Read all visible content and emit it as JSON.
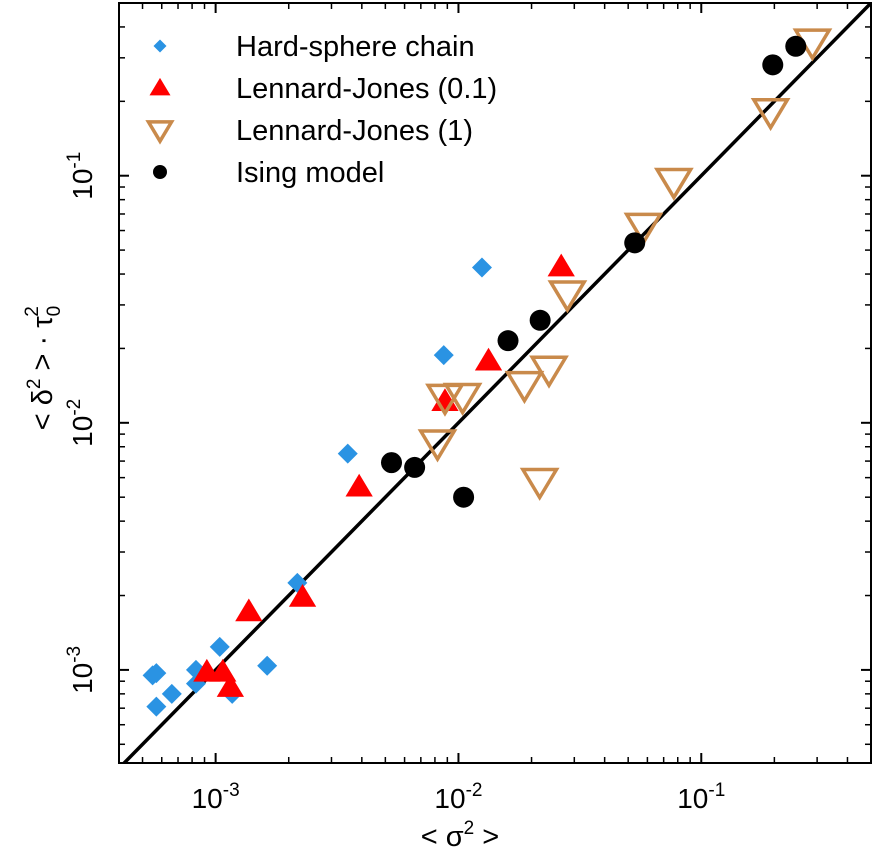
{
  "chart_data": {
    "type": "scatter",
    "xscale": "log",
    "yscale": "log",
    "xlim": [
      0.0004,
      0.5
    ],
    "ylim": [
      0.00042,
      0.5
    ],
    "xlabel_base": "< σ",
    "xlabel_exp": "2",
    "xlabel_tail": " >",
    "ylabel_base": "< δ",
    "ylabel_exp": "2",
    "ylabel_mid": " > · τ",
    "ylabel_sub": "0",
    "ylabel_sup2": "2",
    "xticks": [
      {
        "value": 0.001,
        "base": "10",
        "exp": "-3"
      },
      {
        "value": 0.01,
        "base": "10",
        "exp": "-2"
      },
      {
        "value": 0.1,
        "base": "10",
        "exp": "-1"
      }
    ],
    "yticks": [
      {
        "value": 0.001,
        "base": "10",
        "exp": "-3"
      },
      {
        "value": 0.01,
        "base": "10",
        "exp": "-2"
      },
      {
        "value": 0.1,
        "base": "10",
        "exp": "-1"
      }
    ],
    "grid": false,
    "legend_position": "top-left",
    "reference_line": "y = x",
    "series": [
      {
        "name": "Hard-sphere chain",
        "marker": "diamond",
        "color": "#2a93e3",
        "points": [
          [
            0.00057,
            0.00097
          ],
          [
            0.00055,
            0.00095
          ],
          [
            0.00057,
            0.00071
          ],
          [
            0.00066,
            0.0008
          ],
          [
            0.00083,
            0.00088
          ],
          [
            0.00083,
            0.001
          ],
          [
            0.00104,
            0.00124
          ],
          [
            0.00117,
            0.0008
          ],
          [
            0.00163,
            0.00104
          ],
          [
            0.00217,
            0.00225
          ],
          [
            0.0035,
            0.0075
          ],
          [
            0.0087,
            0.0188
          ],
          [
            0.0125,
            0.0425
          ]
        ]
      },
      {
        "name": "Lennard-Jones (0.1)",
        "marker": "triangle-up",
        "color": "#ff0000",
        "points": [
          [
            0.00092,
            0.00098
          ],
          [
            0.00107,
            0.00098
          ],
          [
            0.00115,
            0.00085
          ],
          [
            0.00137,
            0.00172
          ],
          [
            0.00228,
            0.00197
          ],
          [
            0.0039,
            0.0055
          ],
          [
            0.0088,
            0.0122
          ],
          [
            0.0133,
            0.0178
          ],
          [
            0.0265,
            0.0428
          ]
        ]
      },
      {
        "name": "Lennard-Jones (1)",
        "marker": "triangle-down",
        "color": "#c98a4b",
        "points": [
          [
            0.0082,
            0.0083
          ],
          [
            0.0088,
            0.0127
          ],
          [
            0.0104,
            0.0128
          ],
          [
            0.0187,
            0.0143
          ],
          [
            0.0216,
            0.0058
          ],
          [
            0.0236,
            0.0165
          ],
          [
            0.0281,
            0.0333
          ],
          [
            0.0578,
            0.0625
          ],
          [
            0.0771,
            0.095
          ],
          [
            0.193,
            0.182
          ],
          [
            0.287,
            0.348
          ]
        ]
      },
      {
        "name": "Ising model",
        "marker": "circle",
        "color": "#000000",
        "points": [
          [
            0.0053,
            0.0069
          ],
          [
            0.0066,
            0.0066
          ],
          [
            0.0105,
            0.005
          ],
          [
            0.016,
            0.0215
          ],
          [
            0.0217,
            0.026
          ],
          [
            0.0532,
            0.0535
          ],
          [
            0.197,
            0.281
          ],
          [
            0.245,
            0.334
          ]
        ]
      }
    ]
  }
}
